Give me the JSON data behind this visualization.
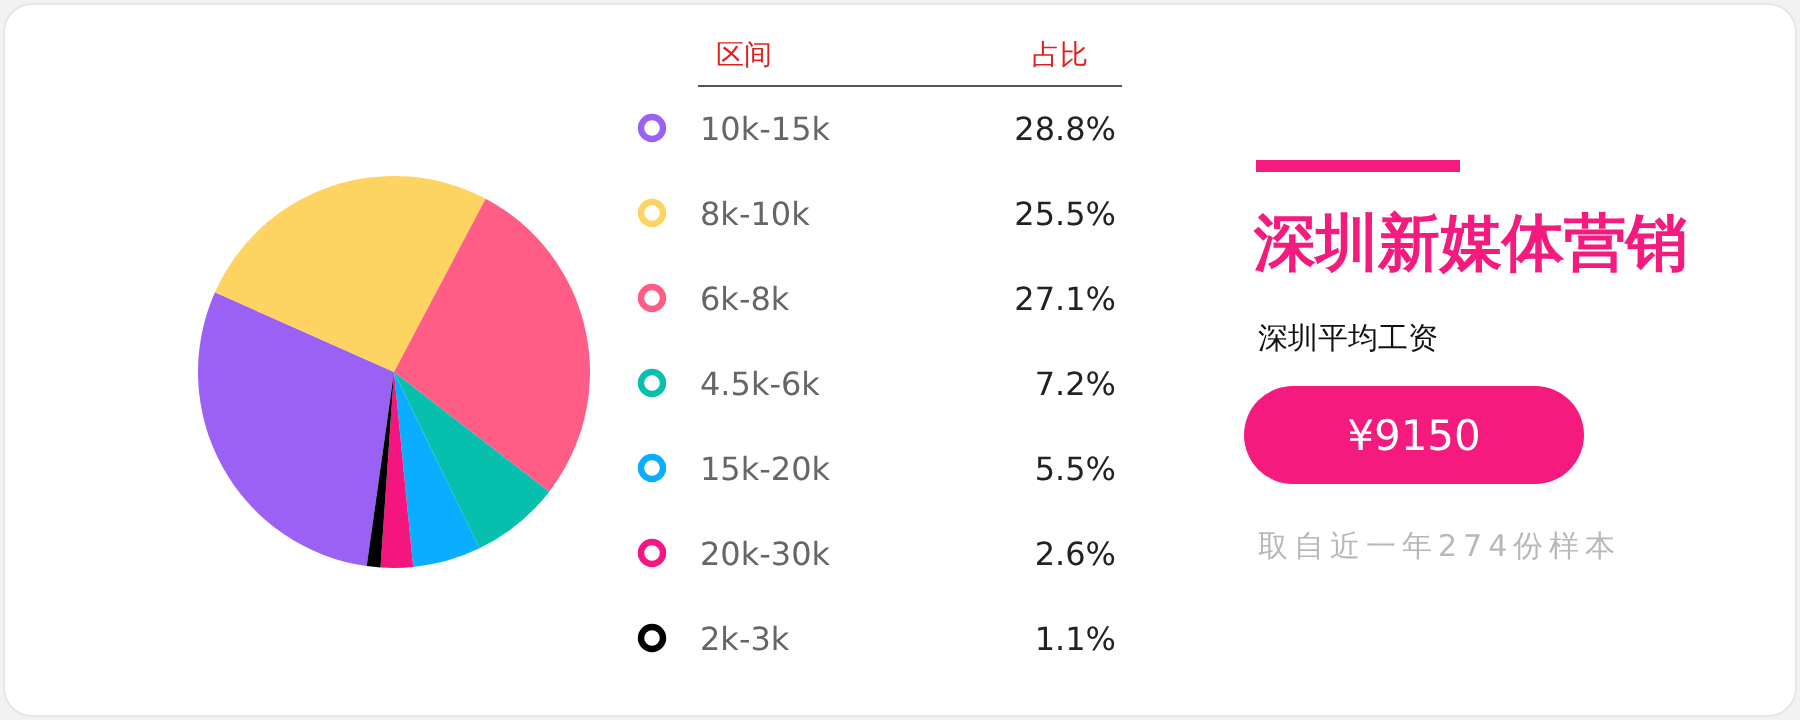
{
  "chart_data": {
    "type": "pie",
    "title": "深圳新媒体营销",
    "subtitle": "深圳平均工资",
    "legend_title": "区间",
    "annotations": [
      "占比",
      "¥9150",
      "取自近一年274份样本"
    ],
    "categories": [
      "10k-15k",
      "8k-10k",
      "6k-8k",
      "4.5k-6k",
      "15k-20k",
      "20k-30k",
      "2k-3k"
    ],
    "values": [
      28.8,
      25.5,
      27.1,
      7.2,
      5.5,
      2.6,
      1.1
    ],
    "colors": [
      "#9b61f5",
      "#fdd361",
      "#ff5d85",
      "#06bfad",
      "#0aadff",
      "#f5157f",
      "#000000"
    ],
    "value_labels": [
      "28.8%",
      "25.5%",
      "27.1%",
      "7.2%",
      "5.5%",
      "2.6%",
      "1.1%"
    ],
    "legend": "right"
  }
}
